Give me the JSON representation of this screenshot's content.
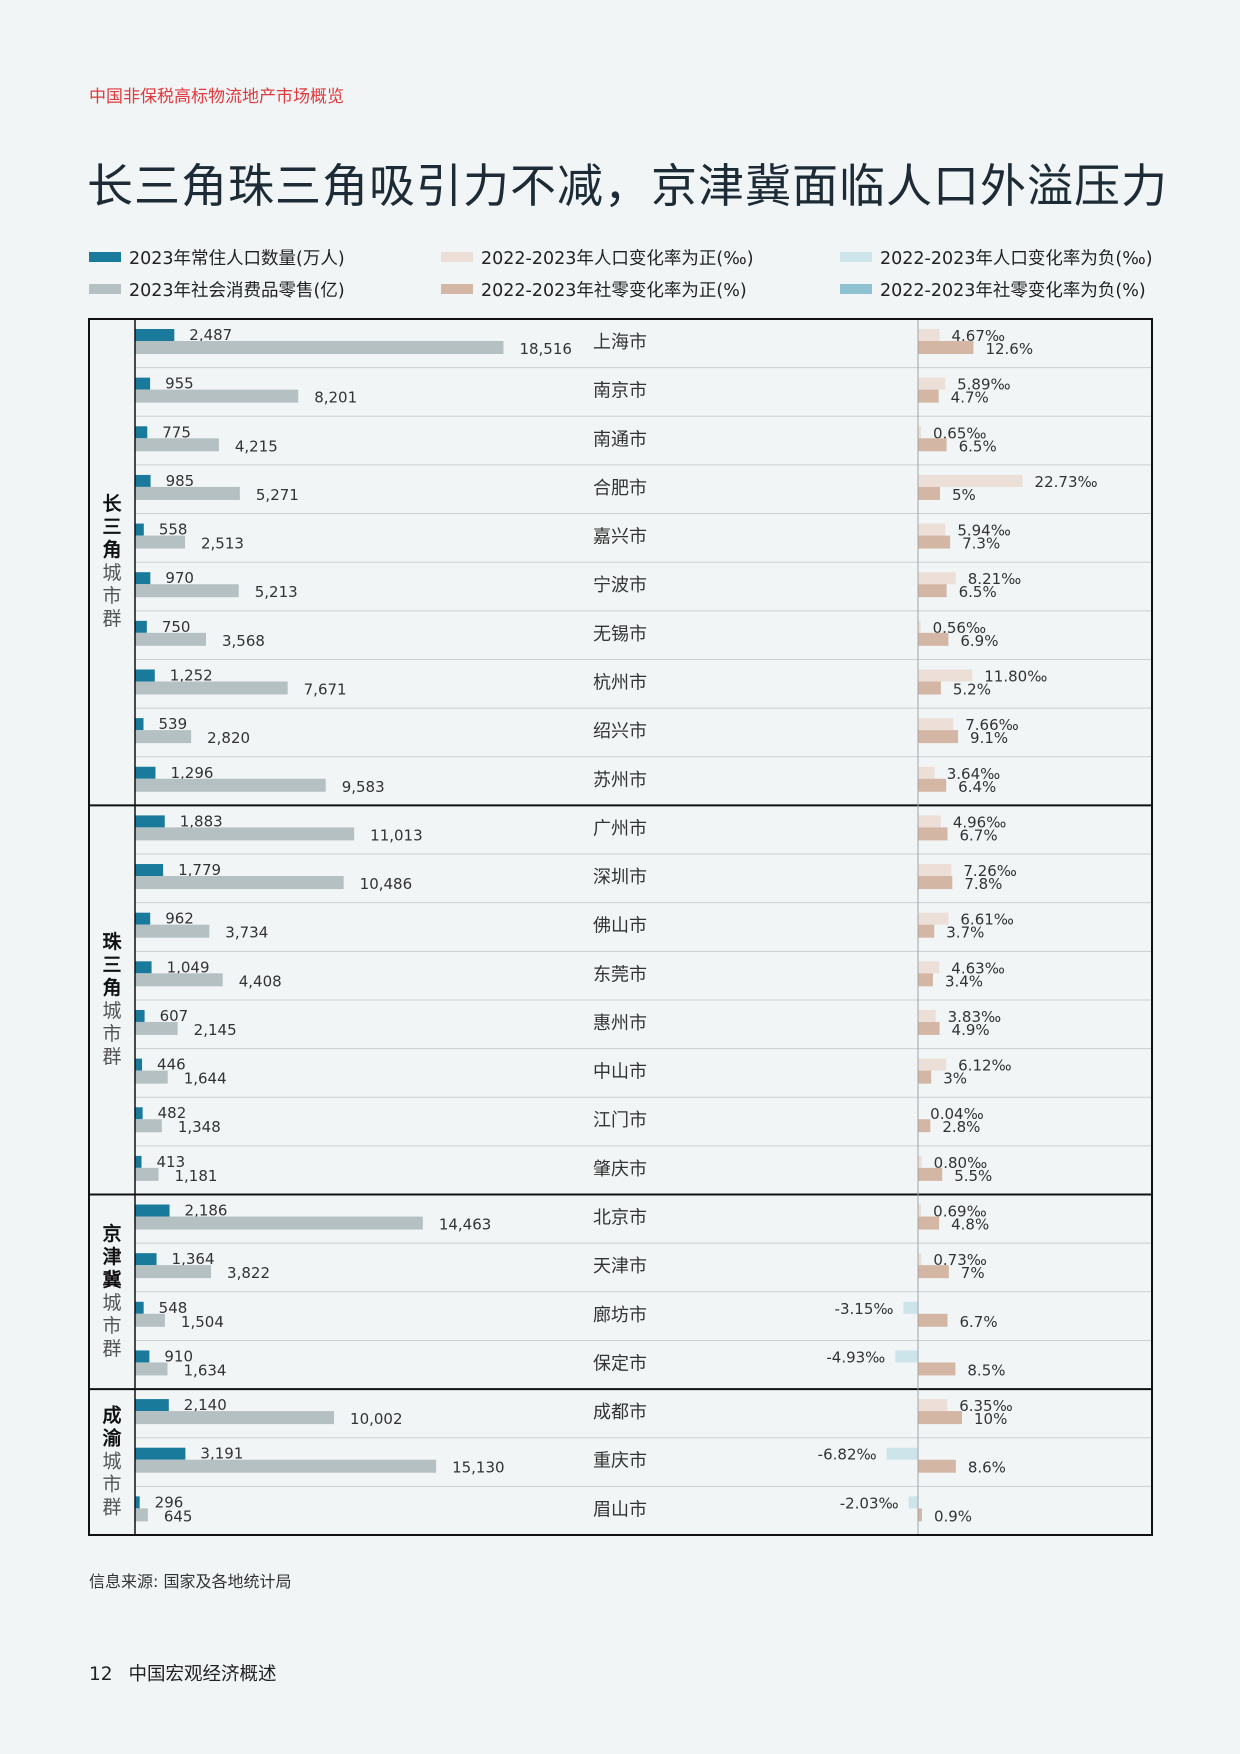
{
  "header": {
    "eyebrow": "中国非保税高标物流地产市场概览",
    "title": "长三角珠三角吸引力不减，京津冀面临人口外溢压力"
  },
  "legend": [
    {
      "label": "2023年常住人口数量(万人)",
      "color": "#1a7a9c"
    },
    {
      "label": "2022-2023年人口变化率为正(‰)",
      "color": "#ecdfd8"
    },
    {
      "label": "2022-2023年人口变化率为负(‰)",
      "color": "#cde4ea"
    },
    {
      "label": "2023年社会消费品零售(亿)",
      "color": "#b5c0c3"
    },
    {
      "label": "2022-2023年社零变化率为正(%)",
      "color": "#d4b6a4"
    },
    {
      "label": "2022-2023年社零变化率为负(%)",
      "color": "#8fc2d0"
    }
  ],
  "chart_data": {
    "type": "bar",
    "series": [
      {
        "name": "2023年常住人口数量(万人)",
        "key": "pop",
        "unit": "万人"
      },
      {
        "name": "2023年社会消费品零售(亿)",
        "key": "retail",
        "unit": "亿"
      },
      {
        "name": "2022-2023年人口变化率(‰)",
        "key": "pop_rate",
        "unit": "‰"
      },
      {
        "name": "2022-2023年社零变化率(%)",
        "key": "retail_rate",
        "unit": "%"
      }
    ],
    "groups": [
      {
        "label": "长三角城市群",
        "title_chars": [
          "长",
          "三",
          "角"
        ],
        "sub_chars": [
          "城",
          "市",
          "群"
        ],
        "cities": [
          {
            "city": "上海市",
            "pop": 2487,
            "pop_label": "2,487",
            "retail": 18516,
            "retail_label": "18,516",
            "pop_rate": 4.67,
            "pop_rate_label": "4.67‰",
            "retail_rate": 12.6,
            "retail_rate_label": "12.6%"
          },
          {
            "city": "南京市",
            "pop": 955,
            "pop_label": "955",
            "retail": 8201,
            "retail_label": "8,201",
            "pop_rate": 5.89,
            "pop_rate_label": "5.89‰",
            "retail_rate": 4.7,
            "retail_rate_label": "4.7%"
          },
          {
            "city": "南通市",
            "pop": 775,
            "pop_label": "775",
            "retail": 4215,
            "retail_label": "4,215",
            "pop_rate": 0.65,
            "pop_rate_label": "0.65‰",
            "retail_rate": 6.5,
            "retail_rate_label": "6.5%"
          },
          {
            "city": "合肥市",
            "pop": 985,
            "pop_label": "985",
            "retail": 5271,
            "retail_label": "5,271",
            "pop_rate": 22.73,
            "pop_rate_label": "22.73‰",
            "retail_rate": 5,
            "retail_rate_label": "5%"
          },
          {
            "city": "嘉兴市",
            "pop": 558,
            "pop_label": "558",
            "retail": 2513,
            "retail_label": "2,513",
            "pop_rate": 5.94,
            "pop_rate_label": "5.94‰",
            "retail_rate": 7.3,
            "retail_rate_label": "7.3%"
          },
          {
            "city": "宁波市",
            "pop": 970,
            "pop_label": "970",
            "retail": 5213,
            "retail_label": "5,213",
            "pop_rate": 8.21,
            "pop_rate_label": "8.21‰",
            "retail_rate": 6.5,
            "retail_rate_label": "6.5%"
          },
          {
            "city": "无锡市",
            "pop": 750,
            "pop_label": "750",
            "retail": 3568,
            "retail_label": "3,568",
            "pop_rate": 0.56,
            "pop_rate_label": "0.56‰",
            "retail_rate": 6.9,
            "retail_rate_label": "6.9%"
          },
          {
            "city": "杭州市",
            "pop": 1252,
            "pop_label": "1,252",
            "retail": 7671,
            "retail_label": "7,671",
            "pop_rate": 11.8,
            "pop_rate_label": "11.80‰",
            "retail_rate": 5.2,
            "retail_rate_label": "5.2%"
          },
          {
            "city": "绍兴市",
            "pop": 539,
            "pop_label": "539",
            "retail": 2820,
            "retail_label": "2,820",
            "pop_rate": 7.66,
            "pop_rate_label": "7.66‰",
            "retail_rate": 9.1,
            "retail_rate_label": "9.1%"
          },
          {
            "city": "苏州市",
            "pop": 1296,
            "pop_label": "1,296",
            "retail": 9583,
            "retail_label": "9,583",
            "pop_rate": 3.64,
            "pop_rate_label": "3.64‰",
            "retail_rate": 6.4,
            "retail_rate_label": "6.4%"
          }
        ]
      },
      {
        "label": "珠三角城市群",
        "title_chars": [
          "珠",
          "三",
          "角"
        ],
        "sub_chars": [
          "城",
          "市",
          "群"
        ],
        "cities": [
          {
            "city": "广州市",
            "pop": 1883,
            "pop_label": "1,883",
            "retail": 11013,
            "retail_label": "11,013",
            "pop_rate": 4.96,
            "pop_rate_label": "4.96‰",
            "retail_rate": 6.7,
            "retail_rate_label": "6.7%"
          },
          {
            "city": "深圳市",
            "pop": 1779,
            "pop_label": "1,779",
            "retail": 10486,
            "retail_label": "10,486",
            "pop_rate": 7.26,
            "pop_rate_label": "7.26‰",
            "retail_rate": 7.8,
            "retail_rate_label": "7.8%"
          },
          {
            "city": "佛山市",
            "pop": 962,
            "pop_label": "962",
            "retail": 3734,
            "retail_label": "3,734",
            "pop_rate": 6.61,
            "pop_rate_label": "6.61‰",
            "retail_rate": 3.7,
            "retail_rate_label": "3.7%"
          },
          {
            "city": "东莞市",
            "pop": 1049,
            "pop_label": "1,049",
            "retail": 4408,
            "retail_label": "4,408",
            "pop_rate": 4.63,
            "pop_rate_label": "4.63‰",
            "retail_rate": 3.4,
            "retail_rate_label": "3.4%"
          },
          {
            "city": "惠州市",
            "pop": 607,
            "pop_label": "607",
            "retail": 2145,
            "retail_label": "2,145",
            "pop_rate": 3.83,
            "pop_rate_label": "3.83‰",
            "retail_rate": 4.9,
            "retail_rate_label": "4.9%"
          },
          {
            "city": "中山市",
            "pop": 446,
            "pop_label": "446",
            "retail": 1644,
            "retail_label": "1,644",
            "pop_rate": 6.12,
            "pop_rate_label": "6.12‰",
            "retail_rate": 3,
            "retail_rate_label": "3%"
          },
          {
            "city": "江门市",
            "pop": 482,
            "pop_label": "482",
            "retail": 1348,
            "retail_label": "1,348",
            "pop_rate": 0.04,
            "pop_rate_label": "0.04‰",
            "retail_rate": 2.8,
            "retail_rate_label": "2.8%"
          },
          {
            "city": "肇庆市",
            "pop": 413,
            "pop_label": "413",
            "retail": 1181,
            "retail_label": "1,181",
            "pop_rate": 0.8,
            "pop_rate_label": "0.80‰",
            "retail_rate": 5.5,
            "retail_rate_label": "5.5%"
          }
        ]
      },
      {
        "label": "京津冀城市群",
        "title_chars": [
          "京",
          "津",
          "冀"
        ],
        "sub_chars": [
          "城",
          "市",
          "群"
        ],
        "cities": [
          {
            "city": "北京市",
            "pop": 2186,
            "pop_label": "2,186",
            "retail": 14463,
            "retail_label": "14,463",
            "pop_rate": 0.69,
            "pop_rate_label": "0.69‰",
            "retail_rate": 4.8,
            "retail_rate_label": "4.8%"
          },
          {
            "city": "天津市",
            "pop": 1364,
            "pop_label": "1,364",
            "retail": 3822,
            "retail_label": "3,822",
            "pop_rate": 0.73,
            "pop_rate_label": "0.73‰",
            "retail_rate": 7,
            "retail_rate_label": "7%"
          },
          {
            "city": "廊坊市",
            "pop": 548,
            "pop_label": "548",
            "retail": 1504,
            "retail_label": "1,504",
            "pop_rate": -3.15,
            "pop_rate_label": "-3.15‰",
            "retail_rate": 6.7,
            "retail_rate_label": "6.7%"
          },
          {
            "city": "保定市",
            "pop": 910,
            "pop_label": "910",
            "retail": 1634,
            "retail_label": "1,634",
            "pop_rate": -4.93,
            "pop_rate_label": "-4.93‰",
            "retail_rate": 8.5,
            "retail_rate_label": "8.5%"
          }
        ]
      },
      {
        "label": "成渝城市群",
        "title_chars": [
          "成",
          "渝"
        ],
        "sub_chars": [
          "城",
          "市",
          "群"
        ],
        "cities": [
          {
            "city": "成都市",
            "pop": 2140,
            "pop_label": "2,140",
            "retail": 10002,
            "retail_label": "10,002",
            "pop_rate": 6.35,
            "pop_rate_label": "6.35‰",
            "retail_rate": 10,
            "retail_rate_label": "10%"
          },
          {
            "city": "重庆市",
            "pop": 3191,
            "pop_label": "3,191",
            "retail": 15130,
            "retail_label": "15,130",
            "pop_rate": -6.82,
            "pop_rate_label": "-6.82‰",
            "retail_rate": 8.6,
            "retail_rate_label": "8.6%"
          },
          {
            "city": "眉山市",
            "pop": 296,
            "pop_label": "296",
            "retail": 645,
            "retail_label": "645",
            "pop_rate": -2.03,
            "pop_rate_label": "-2.03‰",
            "retail_rate": 0.9,
            "retail_rate_label": "0.9%"
          }
        ]
      }
    ]
  },
  "colors": {
    "pop": "#1a7a9c",
    "retail": "#b5c0c3",
    "pop_rate_pos": "#ecdfd8",
    "pop_rate_neg": "#cde4ea",
    "retail_rate_pos": "#d4b6a4",
    "retail_rate_neg": "#8fc2d0",
    "border": "#111111",
    "divider": "#c9d0d3"
  },
  "source": "信息来源: 国家及各地统计局",
  "footer": {
    "page_number": "12",
    "title": "中国宏观经济概述"
  }
}
